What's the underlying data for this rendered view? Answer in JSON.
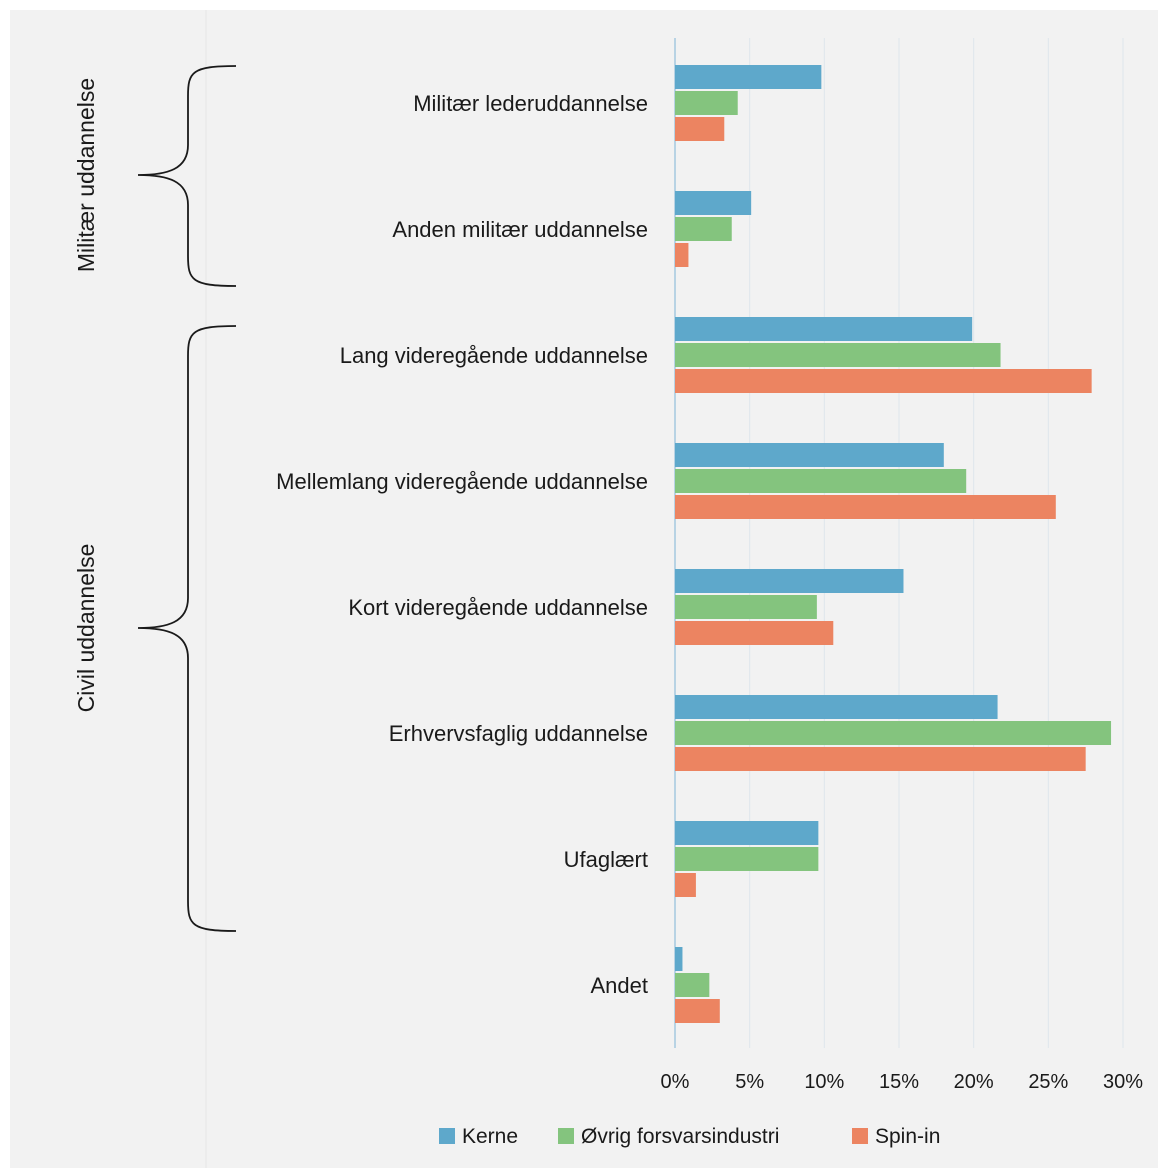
{
  "chart_data": {
    "type": "bar",
    "orientation": "horizontal",
    "categories": [
      "Militær lederuddannelse",
      "Anden militær uddannelse",
      "Lang videregående uddannelse",
      "Mellemlang videregående uddannelse",
      "Kort videregående uddannelse",
      "Erhvervsfaglig uddannelse",
      "Ufaglært",
      "Andet"
    ],
    "series": [
      {
        "name": "Kerne",
        "color": "#5ea8cb",
        "values": [
          9.8,
          5.1,
          19.9,
          18.0,
          15.3,
          21.6,
          9.6,
          0.5
        ]
      },
      {
        "name": "Øvrig forsvarsindustri",
        "color": "#84c47e",
        "values": [
          4.2,
          3.8,
          21.8,
          19.5,
          9.5,
          29.2,
          9.6,
          2.3
        ]
      },
      {
        "name": "Spin-in",
        "color": "#ec8461",
        "values": [
          3.3,
          0.9,
          27.9,
          25.5,
          10.6,
          27.5,
          1.4,
          3.0
        ]
      }
    ],
    "xlim": [
      0,
      30
    ],
    "x_ticks": [
      "0%",
      "5%",
      "10%",
      "15%",
      "20%",
      "25%",
      "30%"
    ],
    "grid": "vertical",
    "legend": "bottom",
    "groups": [
      {
        "label": "Militær uddannelse",
        "categories": [
          "Militær lederuddannelse",
          "Anden militær uddannelse"
        ]
      },
      {
        "label": "Civil uddannelse",
        "categories": [
          "Lang videregående uddannelse",
          "Mellemlang videregående uddannelse",
          "Kort videregående uddannelse",
          "Erhvervsfaglig uddannelse",
          "Ufaglært"
        ]
      }
    ]
  }
}
